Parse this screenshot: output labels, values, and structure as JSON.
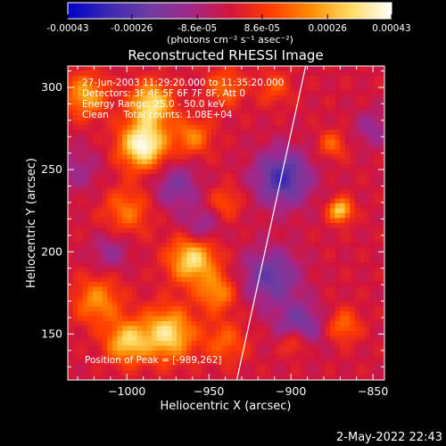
{
  "colorbar": {
    "tick_labels": [
      "-0.00043",
      "-0.00026",
      "-8.6e-05",
      "8.6e-05",
      "0.00026",
      "0.00043"
    ],
    "tick_values": [
      -0.00043,
      -0.00026,
      -8.6e-05,
      8.6e-05,
      0.00026,
      0.00043
    ],
    "range": [
      -0.00043,
      0.00043
    ],
    "unit_label": "(photons cm⁻² s⁻¹ asec⁻²)",
    "colormap": [
      "#0000c8",
      "#3c28b4",
      "#6e3ca0",
      "#a0288c",
      "#d2143c",
      "#ff3c00",
      "#ff8c00",
      "#ffdc64",
      "#ffffff"
    ]
  },
  "plot": {
    "title": "Reconstructed RHESSI Image",
    "info_lines": [
      "27-Jun-2003 11:29:20.000 to 11:35:20.000",
      "Detectors: 3F 4F 5F 6F 7F 8F, Att 0",
      "Energy Range: 25.0 - 50.0 keV",
      "Clean     Total counts: 1.08E+04"
    ],
    "peak_label": "Position of Peak = [-989,262]",
    "footer_date": "2-May-2022 22:43"
  },
  "chart_data": {
    "type": "heatmap",
    "title": "Reconstructed RHESSI Image",
    "xlabel": "Heliocentric X (arcsec)",
    "ylabel": "Heliocentric Y (arcsec)",
    "xlim": [
      -1036,
      -843
    ],
    "ylim": [
      122,
      313
    ],
    "x_ticks": [
      -1000,
      -950,
      -900,
      -850
    ],
    "x_tick_labels": [
      "−1000",
      "−950",
      "−900",
      "−850"
    ],
    "y_ticks": [
      150,
      200,
      250,
      300
    ],
    "y_tick_labels": [
      "150",
      "200",
      "250",
      "300"
    ],
    "peak": [
      -989,
      262
    ],
    "limb_line": [
      [
        -933,
        122
      ],
      [
        -891,
        313
      ]
    ],
    "sources": [
      {
        "x": -1025,
        "y": 295,
        "amp": 0.6,
        "sigma": 9
      },
      {
        "x": -990,
        "y": 265,
        "amp": 1.0,
        "sigma": 10
      },
      {
        "x": -985,
        "y": 290,
        "amp": 0.8,
        "sigma": 9
      },
      {
        "x": -1000,
        "y": 225,
        "amp": 0.4,
        "sigma": 10
      },
      {
        "x": -1018,
        "y": 170,
        "amp": 0.5,
        "sigma": 10
      },
      {
        "x": -1000,
        "y": 145,
        "amp": 0.7,
        "sigma": 9
      },
      {
        "x": -975,
        "y": 150,
        "amp": 0.8,
        "sigma": 11
      },
      {
        "x": -960,
        "y": 195,
        "amp": 0.8,
        "sigma": 10
      },
      {
        "x": -960,
        "y": 270,
        "amp": 0.45,
        "sigma": 8
      },
      {
        "x": -940,
        "y": 300,
        "amp": 0.4,
        "sigma": 8
      },
      {
        "x": -940,
        "y": 230,
        "amp": 0.3,
        "sigma": 7
      },
      {
        "x": -945,
        "y": 175,
        "amp": 0.5,
        "sigma": 8
      },
      {
        "x": -940,
        "y": 145,
        "amp": 0.35,
        "sigma": 9
      },
      {
        "x": -870,
        "y": 225,
        "amp": 0.75,
        "sigma": 5
      },
      {
        "x": -875,
        "y": 265,
        "amp": 0.35,
        "sigma": 6
      },
      {
        "x": -868,
        "y": 155,
        "amp": 0.4,
        "sigma": 7
      },
      {
        "x": -898,
        "y": 145,
        "amp": 0.45,
        "sigma": 6
      },
      {
        "x": -910,
        "y": 300,
        "amp": 0.3,
        "sigma": 7
      },
      {
        "x": -905,
        "y": 245,
        "amp": -0.7,
        "sigma": 12
      },
      {
        "x": -912,
        "y": 185,
        "amp": -0.55,
        "sigma": 12
      },
      {
        "x": -895,
        "y": 155,
        "amp": -0.5,
        "sigma": 10
      },
      {
        "x": -970,
        "y": 240,
        "amp": -0.4,
        "sigma": 10
      },
      {
        "x": -1030,
        "y": 250,
        "amp": -0.25,
        "sigma": 10
      },
      {
        "x": -1010,
        "y": 200,
        "amp": -0.3,
        "sigma": 8
      },
      {
        "x": -955,
        "y": 215,
        "amp": -0.35,
        "sigma": 8
      },
      {
        "x": -850,
        "y": 275,
        "amp": -0.3,
        "sigma": 8
      }
    ]
  }
}
